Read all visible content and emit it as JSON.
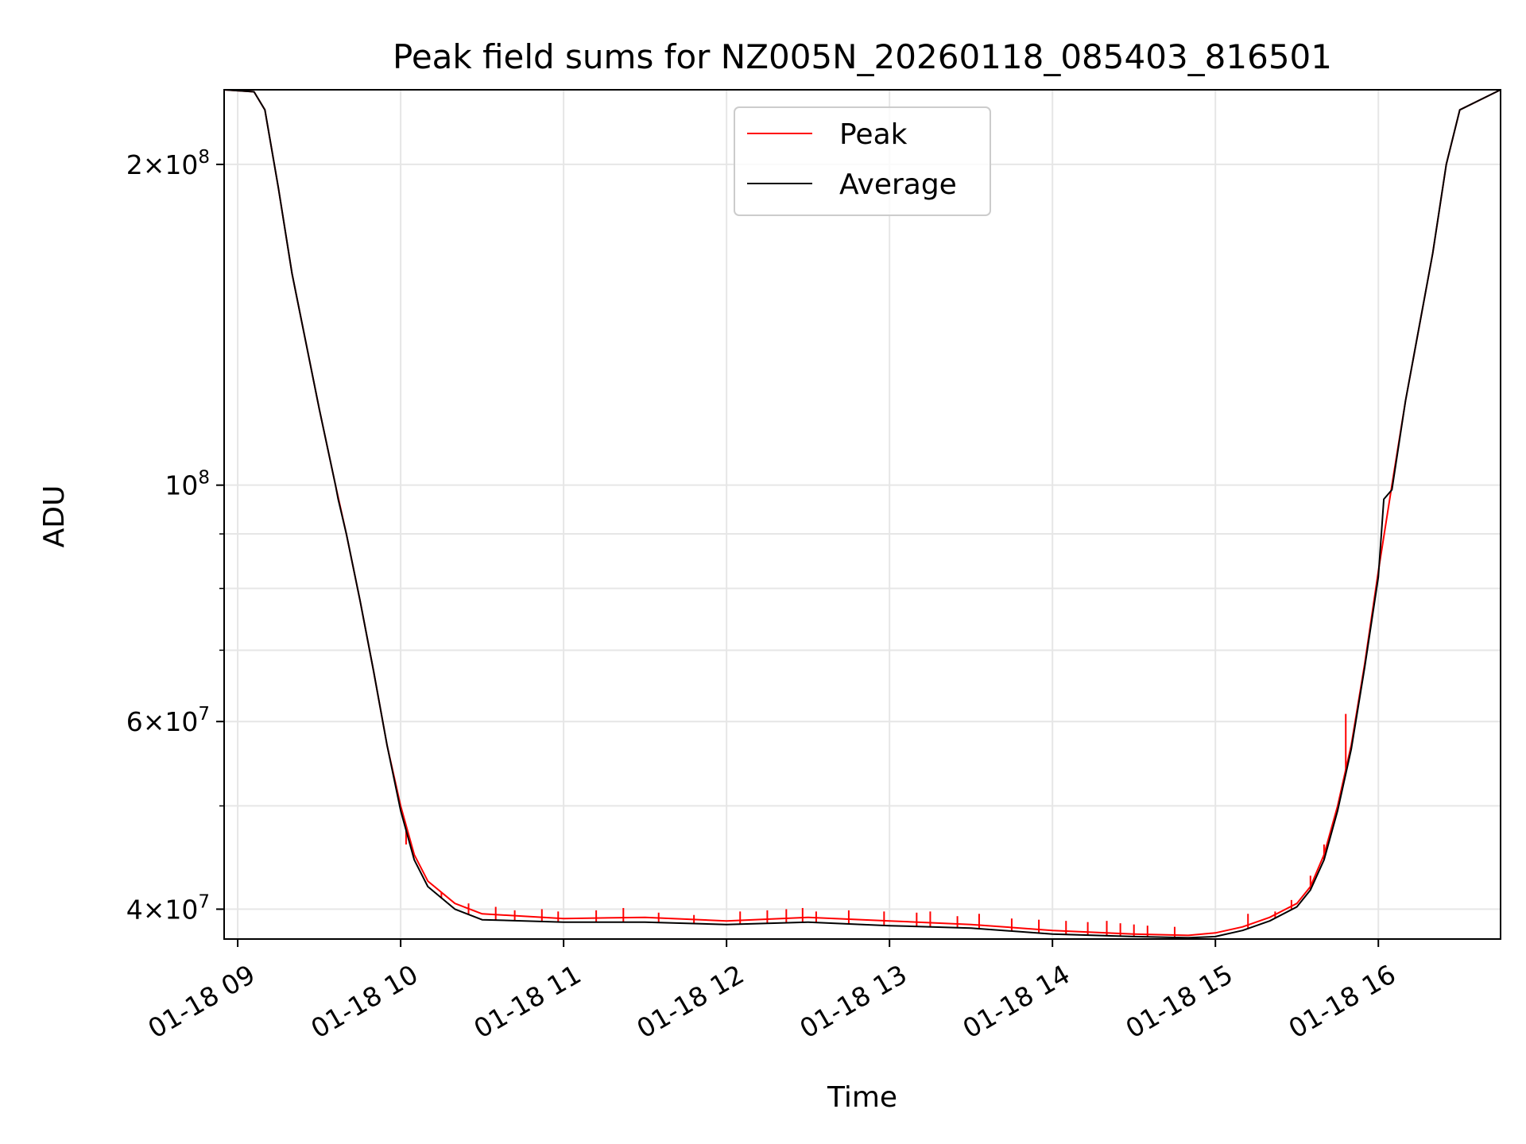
{
  "chart_data": {
    "type": "line",
    "title": "Peak field sums for NZ005N_20260118_085403_816501",
    "xlabel": "Time",
    "ylabel": "ADU",
    "yscale": "log",
    "ylim": [
      37500000,
      235000000
    ],
    "xlim": [
      "01-18 08:55",
      "01-18 16:45"
    ],
    "x_ticks": [
      "01-18 09",
      "01-18 10",
      "01-18 11",
      "01-18 12",
      "01-18 13",
      "01-18 14",
      "01-18 15",
      "01-18 16"
    ],
    "y_ticks": [
      {
        "value": 40000000,
        "mantissa": "4",
        "exp": "7"
      },
      {
        "value": 60000000,
        "mantissa": "6",
        "exp": "7"
      },
      {
        "value": 100000000,
        "mantissa": "",
        "exp": "8"
      },
      {
        "value": 200000000,
        "mantissa": "2",
        "exp": "8"
      }
    ],
    "grid": true,
    "legend": {
      "position": "top-center"
    },
    "colors": {
      "peak": "#ff0000",
      "average": "#000000",
      "grid": "#e6e6e6"
    },
    "series": [
      {
        "name": "Peak",
        "color": "#ff0000",
        "x": [
          "01-18 08:55",
          "01-18 09:06",
          "01-18 09:10",
          "01-18 09:15",
          "01-18 09:20",
          "01-18 09:30",
          "01-18 09:36",
          "01-18 09:40",
          "01-18 09:45",
          "01-18 09:50",
          "01-18 09:55",
          "01-18 10:00",
          "01-18 10:05",
          "01-18 10:10",
          "01-18 10:20",
          "01-18 10:30",
          "01-18 11:00",
          "01-18 11:30",
          "01-18 12:00",
          "01-18 12:30",
          "01-18 13:00",
          "01-18 13:30",
          "01-18 14:00",
          "01-18 14:30",
          "01-18 14:50",
          "01-18 15:00",
          "01-18 15:10",
          "01-18 15:20",
          "01-18 15:30",
          "01-18 15:35",
          "01-18 15:40",
          "01-18 15:45",
          "01-18 15:50",
          "01-18 15:55",
          "01-18 16:00",
          "01-18 16:05",
          "01-18 16:10",
          "01-18 16:20",
          "01-18 16:25",
          "01-18 16:30",
          "01-18 16:45"
        ],
        "values": [
          235000000,
          234000000,
          225000000,
          190000000,
          158000000,
          118000000,
          100000000,
          90000000,
          78000000,
          67000000,
          57000000,
          50000000,
          45000000,
          42500000,
          40500000,
          39600000,
          39200000,
          39300000,
          39000000,
          39300000,
          39000000,
          38700000,
          38200000,
          37900000,
          37800000,
          38000000,
          38500000,
          39300000,
          40500000,
          42000000,
          45000000,
          50000000,
          57000000,
          68000000,
          83000000,
          100000000,
          120000000,
          165000000,
          200000000,
          225000000,
          235000000
        ],
        "spikes": [
          {
            "x": "01-18 10:02",
            "value": 46000000
          },
          {
            "x": "01-18 10:15",
            "value": 41500000
          },
          {
            "x": "01-18 10:25",
            "value": 40500000
          },
          {
            "x": "01-18 10:35",
            "value": 40200000
          },
          {
            "x": "01-18 10:42",
            "value": 39900000
          },
          {
            "x": "01-18 10:52",
            "value": 40000000
          },
          {
            "x": "01-18 10:58",
            "value": 39800000
          },
          {
            "x": "01-18 11:12",
            "value": 39900000
          },
          {
            "x": "01-18 11:22",
            "value": 40100000
          },
          {
            "x": "01-18 11:35",
            "value": 39700000
          },
          {
            "x": "01-18 11:48",
            "value": 39500000
          },
          {
            "x": "01-18 12:05",
            "value": 39800000
          },
          {
            "x": "01-18 12:15",
            "value": 39900000
          },
          {
            "x": "01-18 12:22",
            "value": 40000000
          },
          {
            "x": "01-18 12:28",
            "value": 40100000
          },
          {
            "x": "01-18 12:33",
            "value": 39800000
          },
          {
            "x": "01-18 12:45",
            "value": 39900000
          },
          {
            "x": "01-18 12:58",
            "value": 39800000
          },
          {
            "x": "01-18 13:10",
            "value": 39700000
          },
          {
            "x": "01-18 13:15",
            "value": 39800000
          },
          {
            "x": "01-18 13:25",
            "value": 39400000
          },
          {
            "x": "01-18 13:33",
            "value": 39600000
          },
          {
            "x": "01-18 13:45",
            "value": 39200000
          },
          {
            "x": "01-18 13:55",
            "value": 39100000
          },
          {
            "x": "01-18 14:05",
            "value": 39000000
          },
          {
            "x": "01-18 14:13",
            "value": 38900000
          },
          {
            "x": "01-18 14:20",
            "value": 39000000
          },
          {
            "x": "01-18 14:25",
            "value": 38800000
          },
          {
            "x": "01-18 14:30",
            "value": 38700000
          },
          {
            "x": "01-18 14:35",
            "value": 38600000
          },
          {
            "x": "01-18 14:45",
            "value": 38500000
          },
          {
            "x": "01-18 15:12",
            "value": 39600000
          },
          {
            "x": "01-18 15:22",
            "value": 39800000
          },
          {
            "x": "01-18 15:28",
            "value": 40800000
          },
          {
            "x": "01-18 15:35",
            "value": 43000000
          },
          {
            "x": "01-18 15:40",
            "value": 46000000
          },
          {
            "x": "01-18 15:48",
            "value": 61000000
          }
        ]
      },
      {
        "name": "Average",
        "color": "#000000",
        "x": [
          "01-18 08:55",
          "01-18 09:06",
          "01-18 09:10",
          "01-18 09:15",
          "01-18 09:20",
          "01-18 09:30",
          "01-18 09:36",
          "01-18 09:37",
          "01-18 09:40",
          "01-18 09:45",
          "01-18 09:50",
          "01-18 09:55",
          "01-18 10:00",
          "01-18 10:05",
          "01-18 10:10",
          "01-18 10:20",
          "01-18 10:30",
          "01-18 11:00",
          "01-18 11:30",
          "01-18 12:00",
          "01-18 12:30",
          "01-18 13:00",
          "01-18 13:30",
          "01-18 14:00",
          "01-18 14:30",
          "01-18 14:50",
          "01-18 15:00",
          "01-18 15:10",
          "01-18 15:20",
          "01-18 15:30",
          "01-18 15:35",
          "01-18 15:40",
          "01-18 15:45",
          "01-18 15:50",
          "01-18 15:55",
          "01-18 16:00",
          "01-18 16:02",
          "01-18 16:05",
          "01-18 16:10",
          "01-18 16:20",
          "01-18 16:25",
          "01-18 16:30",
          "01-18 16:45"
        ],
        "values": [
          235000000,
          234000000,
          225000000,
          190000000,
          158000000,
          118000000,
          100000000,
          97000000,
          90000000,
          78000000,
          67000000,
          57000000,
          49500000,
          44500000,
          42000000,
          40000000,
          39100000,
          38900000,
          38900000,
          38700000,
          38900000,
          38600000,
          38400000,
          37900000,
          37700000,
          37600000,
          37700000,
          38200000,
          39000000,
          40200000,
          41700000,
          44500000,
          49500000,
          56500000,
          67500000,
          82000000,
          97000000,
          99000000,
          120000000,
          165000000,
          200000000,
          225000000,
          235000000
        ]
      }
    ]
  }
}
